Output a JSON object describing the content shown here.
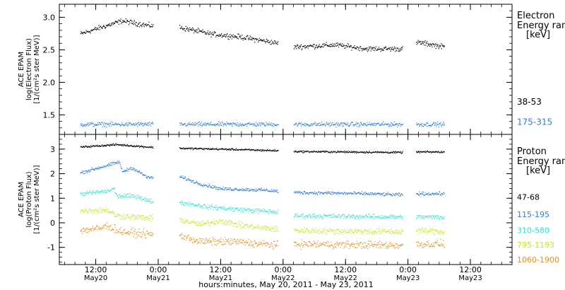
{
  "figure": {
    "x_axis_title": "hours:minutes, May 20, 2011 - May 23, 2011",
    "x_ticks": [
      {
        "time": "12:00",
        "date": "May20",
        "hour": -12
      },
      {
        "time": "0:00",
        "date": "May21",
        "hour": 0
      },
      {
        "time": "12:00",
        "date": "May21",
        "hour": 12
      },
      {
        "time": "0:00",
        "date": "May22",
        "hour": 24
      },
      {
        "time": "12:00",
        "date": "May22",
        "hour": 36
      },
      {
        "time": "0:00",
        "date": "May23",
        "hour": 48
      },
      {
        "time": "12:00",
        "date": "May23",
        "hour": 60
      }
    ]
  },
  "chart_data": [
    {
      "type": "scatter",
      "ylabel_lines": [
        "ACE EPAM",
        "log(Electron Flux)",
        "[1/(cm²s ster MeV)]"
      ],
      "ylim": [
        1.2,
        3.2
      ],
      "yticks": [
        1.5,
        2.0,
        2.5,
        3.0
      ],
      "legend_title": [
        "Electron",
        "Energy ran",
        "[keV]"
      ],
      "data_gaps_hours": [
        [
          -1,
          4
        ],
        [
          23,
          26
        ],
        [
          47,
          49.5
        ]
      ],
      "series": [
        {
          "name": "38-53",
          "color": "#000000",
          "label_value": 1.7,
          "trend": [
            [
              -15,
              2.75
            ],
            [
              -11,
              2.85
            ],
            [
              -7,
              2.95
            ],
            [
              -2,
              2.88
            ],
            [
              4,
              2.85
            ],
            [
              10,
              2.75
            ],
            [
              16,
              2.7
            ],
            [
              22,
              2.62
            ],
            [
              26,
              2.55
            ],
            [
              34,
              2.58
            ],
            [
              40,
              2.52
            ],
            [
              47,
              2.52
            ],
            [
              50,
              2.62
            ],
            [
              55,
              2.55
            ]
          ]
        },
        {
          "name": "175-315",
          "color": "#2f7fd6",
          "label_value": 1.39,
          "trend": [
            [
              -15,
              1.36
            ],
            [
              -2,
              1.36
            ],
            [
              4,
              1.36
            ],
            [
              23,
              1.36
            ],
            [
              26,
              1.36
            ],
            [
              47,
              1.36
            ],
            [
              50,
              1.36
            ],
            [
              55,
              1.36
            ]
          ]
        }
      ]
    },
    {
      "type": "scatter",
      "ylabel_lines": [
        "ACE EPAM",
        "log(Proton Flux)",
        "[1/(cm²s ster MeV)]"
      ],
      "ylim": [
        -1.7,
        3.6
      ],
      "yticks": [
        -1,
        0,
        1,
        2,
        3
      ],
      "legend_title": [
        "Proton",
        "Energy ran",
        "[keV]"
      ],
      "data_gaps_hours": [
        [
          -1,
          4
        ],
        [
          23,
          26
        ],
        [
          47,
          49.5
        ]
      ],
      "series": [
        {
          "name": "47-68",
          "color": "#000000",
          "label_value": 1.05,
          "trend": [
            [
              -15,
              3.1
            ],
            [
              -8,
              3.2
            ],
            [
              -2,
              3.1
            ],
            [
              4,
              3.05
            ],
            [
              15,
              3.0
            ],
            [
              23,
              2.95
            ],
            [
              26,
              2.92
            ],
            [
              47,
              2.88
            ],
            [
              50,
              2.9
            ],
            [
              55,
              2.9
            ]
          ]
        },
        {
          "name": "115-195",
          "color": "#2f7fd6",
          "label_value": 0.35,
          "trend": [
            [
              -15,
              2.05
            ],
            [
              -9,
              2.4
            ],
            [
              -7.5,
              2.5
            ],
            [
              -7,
              2.1
            ],
            [
              -5,
              2.25
            ],
            [
              -2,
              1.85
            ],
            [
              4,
              1.9
            ],
            [
              8,
              1.6
            ],
            [
              12,
              1.4
            ],
            [
              20,
              1.35
            ],
            [
              23,
              1.3
            ],
            [
              26,
              1.25
            ],
            [
              40,
              1.2
            ],
            [
              47,
              1.15
            ],
            [
              50,
              1.2
            ],
            [
              55,
              1.2
            ]
          ]
        },
        {
          "name": "310-580",
          "color": "#2ee6d6",
          "label_value": -0.3,
          "trend": [
            [
              -15,
              1.2
            ],
            [
              -10,
              1.3
            ],
            [
              -8.5,
              1.4
            ],
            [
              -8,
              1.1
            ],
            [
              -4,
              1.1
            ],
            [
              -2,
              0.9
            ],
            [
              4,
              0.85
            ],
            [
              10,
              0.65
            ],
            [
              16,
              0.55
            ],
            [
              23,
              0.45
            ],
            [
              26,
              0.3
            ],
            [
              47,
              0.25
            ],
            [
              50,
              0.25
            ],
            [
              55,
              0.25
            ]
          ]
        },
        {
          "name": "795-1193",
          "color": "#c8e61e",
          "label_value": -0.9,
          "trend": [
            [
              -15,
              0.5
            ],
            [
              -10,
              0.55
            ],
            [
              -8,
              0.3
            ],
            [
              -4,
              0.25
            ],
            [
              -2,
              0.2
            ],
            [
              4,
              0.15
            ],
            [
              8,
              -0.05
            ],
            [
              12,
              0.1
            ],
            [
              16,
              -0.1
            ],
            [
              23,
              -0.25
            ],
            [
              26,
              -0.3
            ],
            [
              47,
              -0.35
            ],
            [
              50,
              -0.3
            ],
            [
              55,
              -0.35
            ]
          ]
        },
        {
          "name": "1060-1900",
          "color": "#e8901c",
          "label_value": -1.5,
          "trend": [
            [
              -15,
              -0.3
            ],
            [
              -11,
              -0.2
            ],
            [
              -10,
              -0.1
            ],
            [
              -7,
              -0.35
            ],
            [
              -2,
              -0.45
            ],
            [
              4,
              -0.5
            ],
            [
              8,
              -0.75
            ],
            [
              14,
              -0.75
            ],
            [
              23,
              -0.9
            ],
            [
              26,
              -0.85
            ],
            [
              47,
              -0.9
            ],
            [
              50,
              -0.85
            ],
            [
              55,
              -0.85
            ]
          ]
        }
      ]
    }
  ]
}
